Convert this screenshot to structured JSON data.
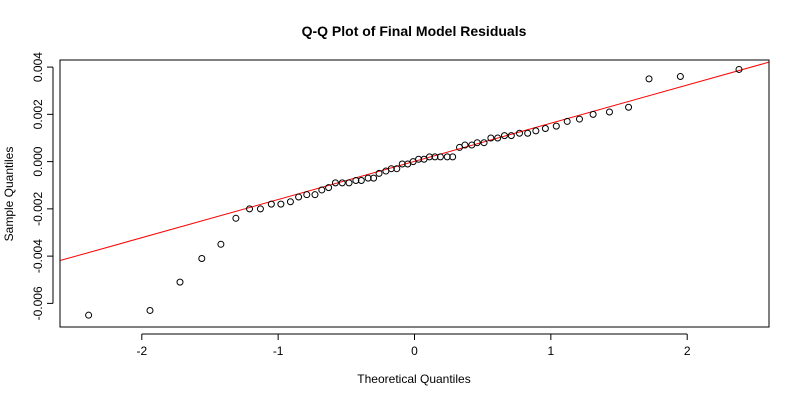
{
  "chart_data": {
    "type": "scatter",
    "title": "Q-Q Plot of Final Model Residuals",
    "xlabel": "Theoretical Quantiles",
    "ylabel": "Sample Quantiles",
    "xlim": [
      -2.6,
      2.6
    ],
    "ylim": [
      -0.007,
      0.0043
    ],
    "xticks": [
      -2,
      -1,
      0,
      1,
      2
    ],
    "xtick_labels": [
      "-2",
      "-1",
      "0",
      "1",
      "2"
    ],
    "yticks": [
      -0.006,
      -0.004,
      -0.002,
      0.0,
      0.002,
      0.004
    ],
    "ytick_labels": [
      "-0.006",
      "-0.004",
      "-0.002",
      "0.000",
      "0.002",
      "0.004"
    ],
    "grid": false,
    "point_style": "open-circle",
    "point_color": "#000000",
    "reference_line": {
      "color": "#ff0000",
      "intercept": 1e-05,
      "slope": 0.001615
    },
    "points": [
      {
        "x": -2.39,
        "y": -0.0065
      },
      {
        "x": -1.94,
        "y": -0.0063
      },
      {
        "x": -1.72,
        "y": -0.0051
      },
      {
        "x": -1.56,
        "y": -0.0041
      },
      {
        "x": -1.42,
        "y": -0.0035
      },
      {
        "x": -1.31,
        "y": -0.0024
      },
      {
        "x": -1.21,
        "y": -0.002
      },
      {
        "x": -1.13,
        "y": -0.002
      },
      {
        "x": -1.05,
        "y": -0.0018
      },
      {
        "x": -0.98,
        "y": -0.0018
      },
      {
        "x": -0.91,
        "y": -0.0017
      },
      {
        "x": -0.85,
        "y": -0.0015
      },
      {
        "x": -0.79,
        "y": -0.0014
      },
      {
        "x": -0.73,
        "y": -0.0014
      },
      {
        "x": -0.68,
        "y": -0.0012
      },
      {
        "x": -0.63,
        "y": -0.0011
      },
      {
        "x": -0.58,
        "y": -0.0009
      },
      {
        "x": -0.53,
        "y": -0.0009
      },
      {
        "x": -0.48,
        "y": -0.0009
      },
      {
        "x": -0.43,
        "y": -0.0008
      },
      {
        "x": -0.39,
        "y": -0.0008
      },
      {
        "x": -0.34,
        "y": -0.0007
      },
      {
        "x": -0.3,
        "y": -0.0007
      },
      {
        "x": -0.26,
        "y": -0.0005
      },
      {
        "x": -0.21,
        "y": -0.0004
      },
      {
        "x": -0.17,
        "y": -0.0003
      },
      {
        "x": -0.13,
        "y": -0.0003
      },
      {
        "x": -0.09,
        "y": -0.0001
      },
      {
        "x": -0.05,
        "y": -0.0001
      },
      {
        "x": -0.01,
        "y": 0.0
      },
      {
        "x": 0.03,
        "y": 0.0001
      },
      {
        "x": 0.07,
        "y": 0.0001
      },
      {
        "x": 0.11,
        "y": 0.0002
      },
      {
        "x": 0.15,
        "y": 0.0002
      },
      {
        "x": 0.19,
        "y": 0.0002
      },
      {
        "x": 0.24,
        "y": 0.0002
      },
      {
        "x": 0.28,
        "y": 0.0002
      },
      {
        "x": 0.33,
        "y": 0.0006
      },
      {
        "x": 0.37,
        "y": 0.0007
      },
      {
        "x": 0.42,
        "y": 0.0007
      },
      {
        "x": 0.46,
        "y": 0.0008
      },
      {
        "x": 0.51,
        "y": 0.0008
      },
      {
        "x": 0.56,
        "y": 0.001
      },
      {
        "x": 0.61,
        "y": 0.001
      },
      {
        "x": 0.66,
        "y": 0.0011
      },
      {
        "x": 0.71,
        "y": 0.0011
      },
      {
        "x": 0.77,
        "y": 0.0012
      },
      {
        "x": 0.83,
        "y": 0.0012
      },
      {
        "x": 0.89,
        "y": 0.0013
      },
      {
        "x": 0.96,
        "y": 0.0014
      },
      {
        "x": 1.04,
        "y": 0.0015
      },
      {
        "x": 1.12,
        "y": 0.0017
      },
      {
        "x": 1.21,
        "y": 0.0018
      },
      {
        "x": 1.31,
        "y": 0.002
      },
      {
        "x": 1.43,
        "y": 0.0021
      },
      {
        "x": 1.57,
        "y": 0.0023
      },
      {
        "x": 1.72,
        "y": 0.0035
      },
      {
        "x": 1.95,
        "y": 0.0036
      },
      {
        "x": 2.38,
        "y": 0.0039
      }
    ]
  }
}
